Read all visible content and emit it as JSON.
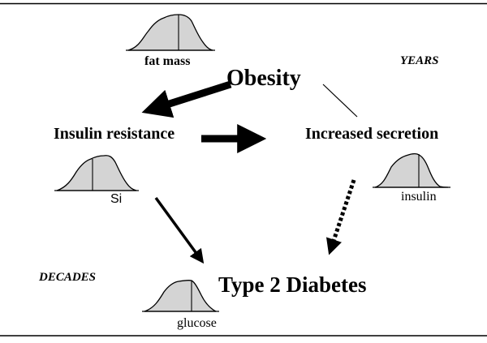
{
  "nodes": {
    "obesity": "Obesity",
    "insulin_resistance": "Insulin resistance",
    "increased_secretion": "Increased secretion",
    "type2_diabetes": "Type 2 Diabetes"
  },
  "distributions": {
    "fat_mass": "fat mass",
    "si": "Si",
    "insulin": "insulin",
    "glucose": "glucose"
  },
  "timescales": {
    "years": "YEARS",
    "decades": "DECADES"
  },
  "colors": {
    "curve_fill": "#d4d4d4",
    "ink": "#000000"
  }
}
